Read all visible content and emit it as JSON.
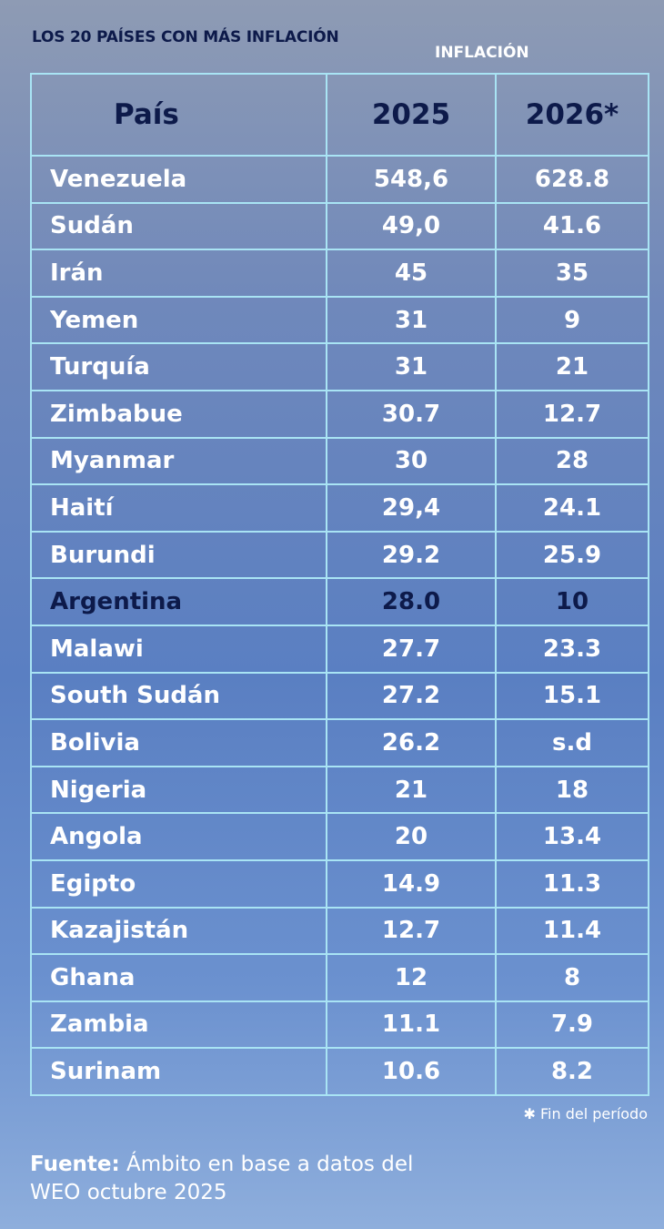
{
  "header": {
    "title": "LOS 20 PAÍSES CON MÁS INFLACIÓN",
    "group_label": "INFLACIÓN"
  },
  "table": {
    "columns": [
      "País",
      "2025",
      "2026*"
    ],
    "rows": [
      [
        "Venezuela",
        "548,6",
        "628.8"
      ],
      [
        "Sudán",
        "49,0",
        "41.6"
      ],
      [
        "Irán",
        "45",
        "35"
      ],
      [
        "Yemen",
        "31",
        "9"
      ],
      [
        "Turquía",
        "31",
        "21"
      ],
      [
        "Zimbabue",
        "30.7",
        "12.7"
      ],
      [
        "Myanmar",
        "30",
        "28"
      ],
      [
        "Haití",
        "29,4",
        "24.1"
      ],
      [
        "Burundi",
        "29.2",
        "25.9"
      ],
      [
        "Argentina",
        "28.0",
        "10"
      ],
      [
        "Malawi",
        "27.7",
        "23.3"
      ],
      [
        "South Sudán",
        "27.2",
        "15.1"
      ],
      [
        "Bolivia",
        "26.2",
        "s.d"
      ],
      [
        "Nigeria",
        "21",
        "18"
      ],
      [
        "Angola",
        "20",
        "13.4"
      ],
      [
        "Egipto",
        "14.9",
        "11.3"
      ],
      [
        "Kazajistán",
        "12.7",
        "11.4"
      ],
      [
        "Ghana",
        "12",
        "8"
      ],
      [
        "Zambia",
        "11.1",
        "7.9"
      ],
      [
        "Surinam",
        "10.6",
        "8.2"
      ]
    ]
  },
  "footnote": "✱ Fin del período",
  "source": {
    "label": "Fuente:",
    "text": "Ámbito en base a datos del WEO octubre 2025"
  }
}
